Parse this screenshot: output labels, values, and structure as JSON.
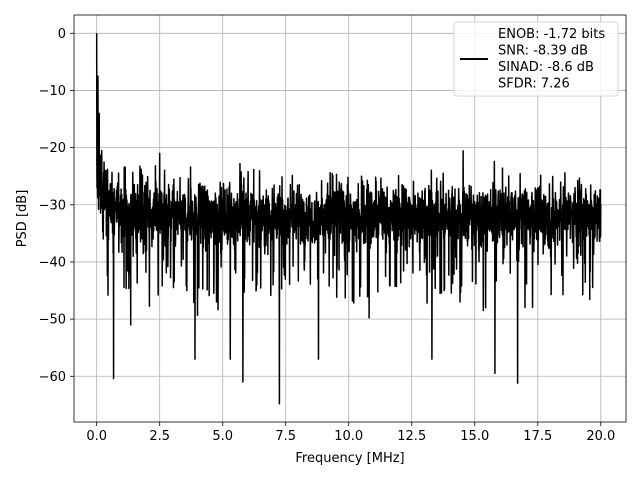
{
  "chart_data": {
    "type": "line",
    "title": "",
    "xlabel": "Frequency [MHz]",
    "ylabel": "PSD [dB]",
    "xlim": [
      -0.9,
      21.0
    ],
    "ylim": [
      -68.0,
      3.2
    ],
    "x_ticks": [
      0.0,
      2.5,
      5.0,
      7.5,
      10.0,
      12.5,
      15.0,
      17.5,
      20.0
    ],
    "x_tick_labels": [
      "0.0",
      "2.5",
      "5.0",
      "7.5",
      "10.0",
      "12.5",
      "15.0",
      "17.5",
      "20.0"
    ],
    "y_ticks": [
      0,
      -10,
      -20,
      -30,
      -40,
      -50,
      -60
    ],
    "y_tick_labels": [
      "0",
      "−10",
      "−20",
      "−30",
      "−40",
      "−50",
      "−60"
    ],
    "grid": true,
    "legend_position": "top-right",
    "series_color": "#000000",
    "legend_lines": [
      "ENOB: -1.72 bits",
      "SNR: -8.39 dB",
      "SINAD: -8.6 dB",
      "SFDR: 7.26"
    ],
    "series": [
      {
        "name": "ENOB: -1.72 bits",
        "x_range": [
          0.0,
          20.0
        ],
        "noise_floor_band_db": [
          -40,
          -24
        ],
        "peak_db": 0.0,
        "key_points": [
          {
            "x": 0.0,
            "y": 0.0
          },
          {
            "x": 0.02,
            "y": -13.0
          },
          {
            "x": 0.05,
            "y": -7.5
          },
          {
            "x": 0.1,
            "y": -14.0
          },
          {
            "x": 0.2,
            "y": -20.5
          },
          {
            "x": 0.35,
            "y": -24.0
          },
          {
            "x": 0.45,
            "y": -45.8
          },
          {
            "x": 0.67,
            "y": -60.4
          },
          {
            "x": 1.35,
            "y": -51.0
          },
          {
            "x": 2.5,
            "y": -21.0
          },
          {
            "x": 3.9,
            "y": -57.0
          },
          {
            "x": 5.3,
            "y": -57.0
          },
          {
            "x": 5.8,
            "y": -61.0
          },
          {
            "x": 7.25,
            "y": -64.8
          },
          {
            "x": 8.8,
            "y": -57.0
          },
          {
            "x": 13.3,
            "y": -57.0
          },
          {
            "x": 15.8,
            "y": -59.5
          },
          {
            "x": 16.7,
            "y": -61.2
          },
          {
            "x": 20.0,
            "y": -30.0
          }
        ]
      }
    ]
  }
}
